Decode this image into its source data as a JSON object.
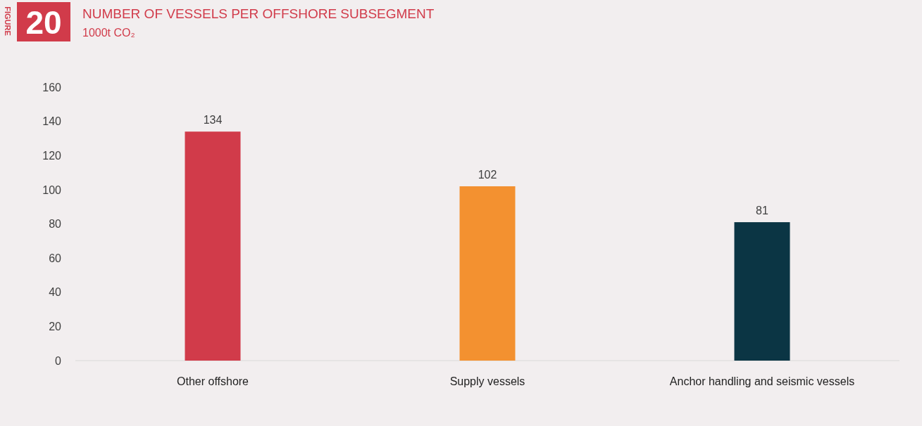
{
  "chart_data": {
    "type": "bar",
    "title": "NUMBER OF VESSELS PER OFFSHORE SUBSEGMENT",
    "subtitle": "1000t CO₂",
    "annotations": [
      "FIGURE",
      "20"
    ],
    "categories": [
      "Other offshore",
      "Supply vessels",
      "Anchor handling and seismic vessels"
    ],
    "values": [
      134,
      102,
      81
    ],
    "colors": [
      "#d13b4a",
      "#f39130",
      "#0b3544"
    ],
    "ylim": [
      0,
      160
    ],
    "yticks": [
      0,
      20,
      40,
      60,
      80,
      100,
      120,
      140,
      160
    ],
    "grid": false,
    "data_labels": true
  }
}
